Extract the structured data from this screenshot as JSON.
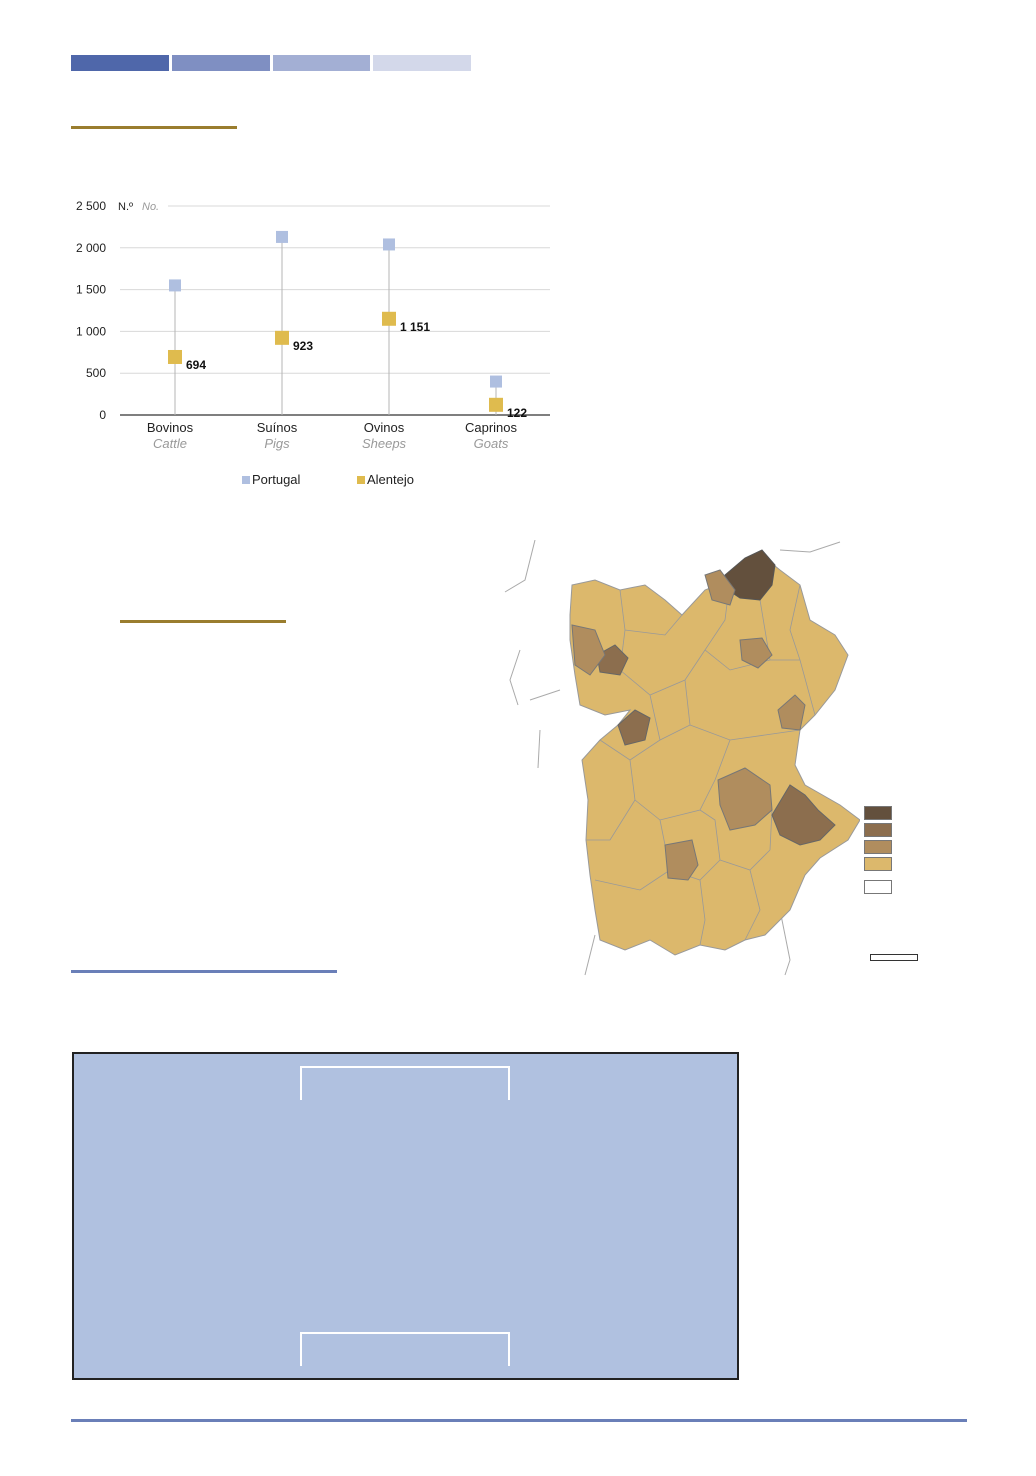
{
  "colors": {
    "topbar": [
      "#4f67aa",
      "#7f8fc2",
      "#a3afd4",
      "#d3d8ea"
    ],
    "portugal": "#afbfe0",
    "alentejo": "#dfbb4e",
    "map_classes": [
      "#63503d",
      "#8c6e4e",
      "#b08d5e",
      "#dcb86c",
      "#ffffff"
    ],
    "panel": "#b0c1e0"
  },
  "chart_data": {
    "type": "scatter",
    "unit_label": "N.º",
    "unit_label_en": "No.",
    "categories": [
      "Bovinos",
      "Suínos",
      "Ovinos",
      "Caprinos"
    ],
    "categories_en": [
      "Cattle",
      "Pigs",
      "Sheeps",
      "Goats"
    ],
    "yticks": [
      "0",
      "500",
      "1 000",
      "1 500",
      "2 000",
      "2 500"
    ],
    "ylim": [
      0,
      2500
    ],
    "series": [
      {
        "name": "Portugal",
        "values": [
          1550,
          2130,
          2040,
          400
        ],
        "labels": [
          "",
          "",
          "",
          ""
        ]
      },
      {
        "name": "Alentejo",
        "values": [
          694,
          923,
          1151,
          122
        ],
        "labels": [
          "694",
          "923",
          "1 151",
          "122"
        ]
      }
    ],
    "legend_position": "bottom",
    "grid": true
  }
}
